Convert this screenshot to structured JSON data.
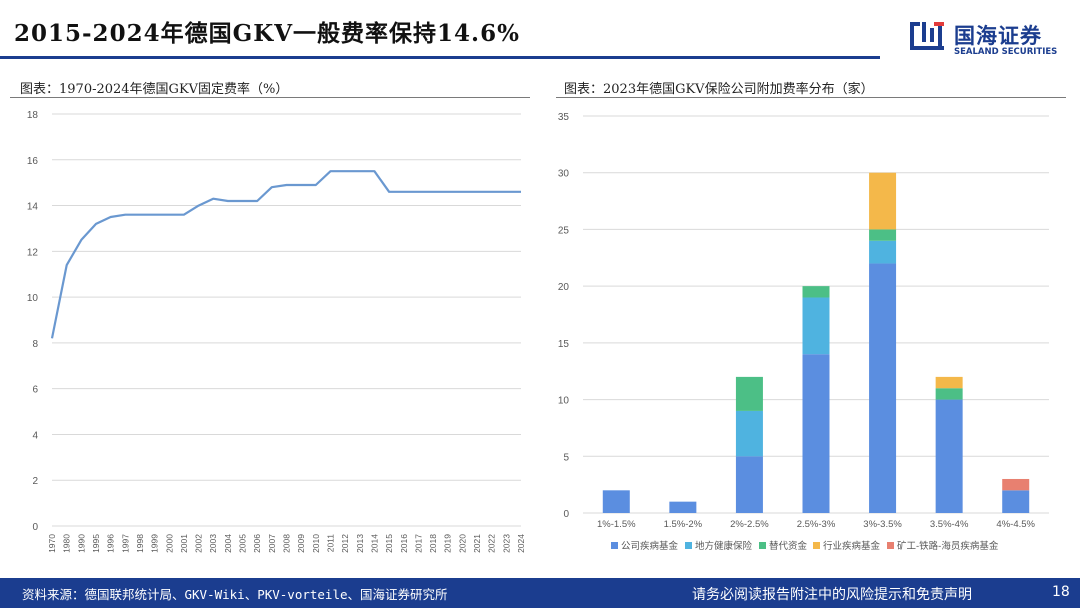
{
  "slide": {
    "title": "2015-2024年德国GKV一般费率保持14.6%",
    "page_number": "18"
  },
  "logo": {
    "name_cn": "国海证券",
    "name_en": "SEALAND SECURITIES"
  },
  "colors": {
    "brand": "#1b3d8f",
    "line": "#6a98d0",
    "grid": "#d9d9d9"
  },
  "footer": {
    "source": "资料来源：德国联邦统计局、GKV-Wiki、PKV-vorteile、国海证券研究所",
    "disclaimer": "请务必阅读报告附注中的风险提示和免责声明"
  },
  "chart_data": [
    {
      "type": "line",
      "title": "图表：1970-2024年德国GKV固定费率（%）",
      "x": [
        "1970",
        "1980",
        "1990",
        "1995",
        "1996",
        "1997",
        "1998",
        "1999",
        "2000",
        "2001",
        "2002",
        "2003",
        "2004",
        "2005",
        "2006",
        "2007",
        "2008",
        "2009",
        "2010",
        "2011",
        "2012",
        "2013",
        "2014",
        "2015",
        "2016",
        "2017",
        "2018",
        "2019",
        "2020",
        "2021",
        "2022",
        "2023",
        "2024"
      ],
      "series": [
        {
          "values": [
            8.2,
            11.4,
            12.5,
            13.2,
            13.5,
            13.6,
            13.6,
            13.6,
            13.6,
            13.6,
            14.0,
            14.3,
            14.2,
            14.2,
            14.2,
            14.8,
            14.9,
            14.9,
            14.9,
            15.5,
            15.5,
            15.5,
            15.5,
            14.6,
            14.6,
            14.6,
            14.6,
            14.6,
            14.6,
            14.6,
            14.6,
            14.6,
            14.6
          ]
        }
      ],
      "ylim": [
        0,
        18
      ],
      "yticks": [
        0,
        2,
        4,
        6,
        8,
        10,
        12,
        14,
        16,
        18
      ],
      "grid": true,
      "legend": "none"
    },
    {
      "type": "bar",
      "stacked": true,
      "title": "图表：2023年德国GKV保险公司附加费率分布（家）",
      "categories": [
        "1%-1.5%",
        "1.5%-2%",
        "2%-2.5%",
        "2.5%-3%",
        "3%-3.5%",
        "3.5%-4%",
        "4%-4.5%"
      ],
      "series": [
        {
          "name": "公司疾病基金",
          "color": "#5b8ee0",
          "values": [
            2,
            1,
            5,
            14,
            22,
            10,
            2
          ]
        },
        {
          "name": "地方健康保险",
          "color": "#4fb3e0",
          "values": [
            0,
            0,
            4,
            5,
            2,
            0,
            0
          ]
        },
        {
          "name": "替代资金",
          "color": "#4cbf86",
          "values": [
            0,
            0,
            3,
            1,
            1,
            1,
            0
          ]
        },
        {
          "name": "行业疾病基金",
          "color": "#f4b84a",
          "values": [
            0,
            0,
            0,
            0,
            5,
            1,
            0
          ]
        },
        {
          "name": "矿工-铁路-海员疾病基金",
          "color": "#e88070",
          "values": [
            0,
            0,
            0,
            0,
            0,
            0,
            1
          ]
        }
      ],
      "ylim": [
        0,
        35
      ],
      "yticks": [
        0,
        5,
        10,
        15,
        20,
        25,
        30,
        35
      ],
      "grid": true,
      "legend": "bottom"
    }
  ]
}
